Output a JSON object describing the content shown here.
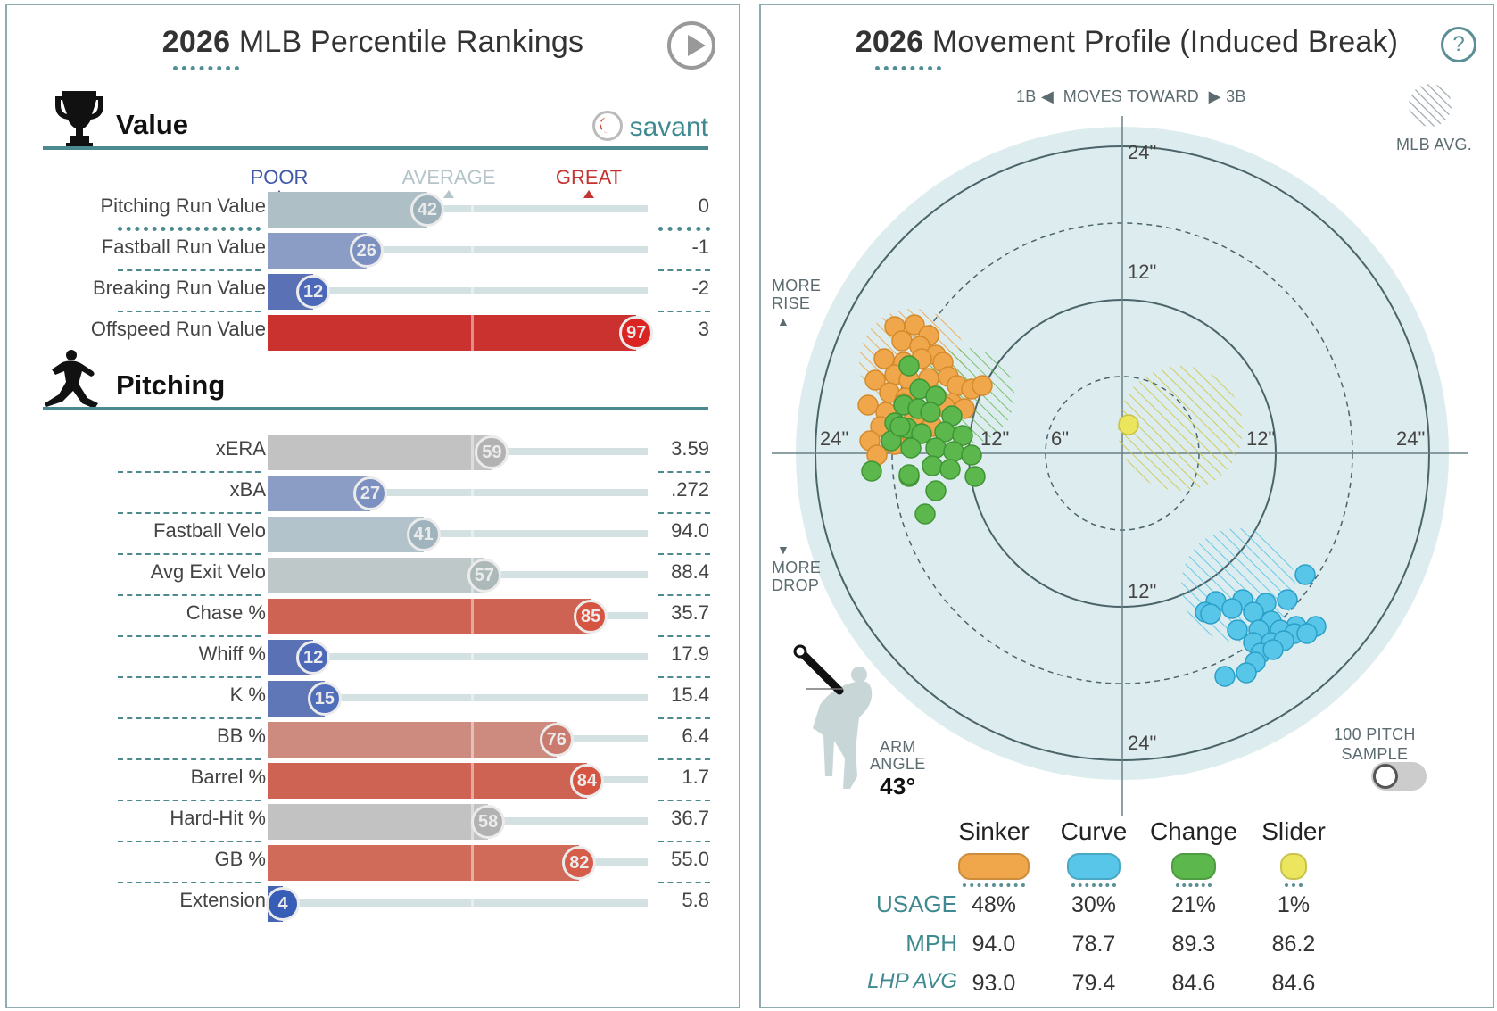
{
  "left": {
    "title_year": "2026",
    "title_rest": " MLB Percentile Rankings",
    "value_section": "Value",
    "savant_label": "savant",
    "scale": {
      "poor": "POOR",
      "average": "AVERAGE",
      "great": "GREAT"
    },
    "value_rows": [
      {
        "name": "Pitching Run Value",
        "pct": 42,
        "value": "0",
        "color": "#aebfc6"
      },
      {
        "name": "Fastball Run Value",
        "pct": 26,
        "value": "-1",
        "color": "#8b9cc5"
      },
      {
        "name": "Breaking Run Value",
        "pct": 12,
        "value": "-2",
        "color": "#5a72b5"
      },
      {
        "name": "Offspeed Run Value",
        "pct": 97,
        "value": "3",
        "color": "#c9322f"
      }
    ],
    "pitching_section": "Pitching",
    "pitching_rows": [
      {
        "name": "xERA",
        "pct": 59,
        "value": "3.59",
        "color": "#c2c2c2"
      },
      {
        "name": "xBA",
        "pct": 27,
        "value": ".272",
        "color": "#8b9cc5"
      },
      {
        "name": "Fastball Velo",
        "pct": 41,
        "value": "94.0",
        "color": "#b2c3cb"
      },
      {
        "name": "Avg Exit Velo",
        "pct": 57,
        "value": "88.4",
        "color": "#bec8c8"
      },
      {
        "name": "Chase %",
        "pct": 85,
        "value": "35.7",
        "color": "#cf6353"
      },
      {
        "name": "Whiff %",
        "pct": 12,
        "value": "17.9",
        "color": "#5a72b5"
      },
      {
        "name": "K %",
        "pct": 15,
        "value": "15.4",
        "color": "#5f77b7"
      },
      {
        "name": "BB %",
        "pct": 76,
        "value": "6.4",
        "color": "#cd8a7e"
      },
      {
        "name": "Barrel %",
        "pct": 84,
        "value": "1.7",
        "color": "#cf6353"
      },
      {
        "name": "Hard-Hit %",
        "pct": 58,
        "value": "36.7",
        "color": "#c2c2c2"
      },
      {
        "name": "GB %",
        "pct": 82,
        "value": "55.0",
        "color": "#d06b5a"
      },
      {
        "name": "Extension",
        "pct": 4,
        "value": "5.8",
        "color": "#4565b0"
      }
    ]
  },
  "right": {
    "title_year": "2026",
    "title_rest": " Movement Profile (Induced Break)",
    "help": "?",
    "moves_toward": {
      "left": "1B",
      "middle": "MOVES TOWARD",
      "right": "3B"
    },
    "mlb_avg": "MLB AVG.",
    "more_rise": [
      "MORE",
      "RISE"
    ],
    "more_drop": [
      "MORE",
      "DROP"
    ],
    "ring_labels": {
      "h24": "24\"",
      "h12": "12\"",
      "h6": "6\""
    },
    "arm_angle_label": [
      "ARM",
      "ANGLE"
    ],
    "arm_angle_value": "43°",
    "sample_label": [
      "100 PITCH",
      "SAMPLE"
    ],
    "row_labels": {
      "usage": "USAGE",
      "mph": "MPH",
      "lhp": "LHP AVG"
    },
    "pitches": [
      {
        "name": "Sinker",
        "color": "#f0a64a",
        "usage": "48%",
        "mph": "94.0",
        "lhp": "93.0"
      },
      {
        "name": "Curve",
        "color": "#58c6e8",
        "usage": "30%",
        "mph": "78.7",
        "lhp": "79.4"
      },
      {
        "name": "Change",
        "color": "#5cb84d",
        "usage": "21%",
        "mph": "89.3",
        "lhp": "84.6"
      },
      {
        "name": "Slider",
        "color": "#ece55e",
        "usage": "1%",
        "mph": "86.2",
        "lhp": "84.6"
      }
    ]
  }
}
